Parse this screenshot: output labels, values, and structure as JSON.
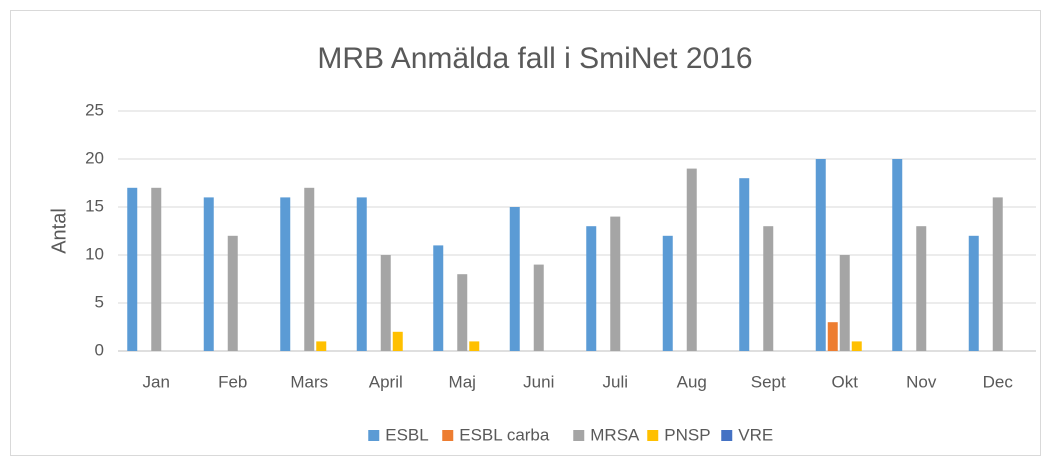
{
  "chart_data": {
    "type": "bar",
    "title": "MRB Anmälda fall i SmiNet 2016",
    "y_label": "Antal",
    "categories": [
      "Jan",
      "Feb",
      "Mars",
      "April",
      "Maj",
      "Juni",
      "Juli",
      "Aug",
      "Sept",
      "Okt",
      "Nov",
      "Dec"
    ],
    "series": [
      {
        "name": "ESBL",
        "color": "#5b9bd5",
        "values": [
          17,
          16,
          16,
          16,
          11,
          15,
          13,
          12,
          18,
          20,
          20,
          12
        ]
      },
      {
        "name": "ESBL carba",
        "color": "#ed7d31",
        "values": [
          0,
          0,
          0,
          0,
          0,
          0,
          0,
          0,
          0,
          3,
          0,
          0
        ]
      },
      {
        "name": "MRSA",
        "color": "#a5a5a5",
        "values": [
          17,
          12,
          17,
          10,
          8,
          9,
          14,
          19,
          13,
          10,
          13,
          16
        ]
      },
      {
        "name": "PNSP",
        "color": "#ffc000",
        "values": [
          0,
          0,
          1,
          2,
          1,
          0,
          0,
          0,
          0,
          1,
          0,
          0
        ]
      },
      {
        "name": "VRE",
        "color": "#4472c4",
        "values": [
          0,
          0,
          0,
          0,
          0,
          0,
          0,
          0,
          0,
          0,
          0,
          0
        ]
      }
    ],
    "ylim": [
      0,
      25
    ],
    "yticks": [
      0,
      5,
      10,
      15,
      20,
      25
    ],
    "grid": true,
    "legend": "bottom"
  }
}
